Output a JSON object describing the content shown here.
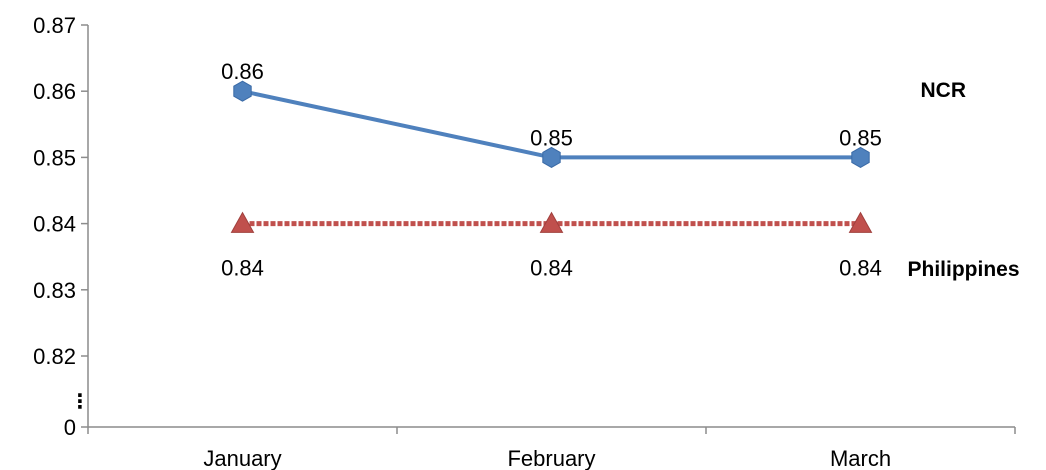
{
  "chart_data": {
    "type": "line",
    "categories": [
      "January",
      "February",
      "March"
    ],
    "y_ticks": [
      "0.87",
      "0.86",
      "0.85",
      "0.84",
      "0.83",
      "0.82",
      "0"
    ],
    "y_break": true,
    "ylim": [
      0.81,
      0.87
    ],
    "grid": false,
    "legend": "none (series names labeled at right end of lines)",
    "series": [
      {
        "name": "NCR",
        "values": [
          0.86,
          0.85,
          0.85
        ],
        "data_labels": [
          "0.86",
          "0.85",
          "0.85"
        ],
        "color": "#4f81bd",
        "marker": "hexagon",
        "line_style": "solid"
      },
      {
        "name": "Philippines",
        "values": [
          0.84,
          0.84,
          0.84
        ],
        "data_labels": [
          "0.84",
          "0.84",
          "0.84"
        ],
        "color": "#c0504d",
        "marker": "triangle",
        "line_style": "dotted"
      }
    ]
  }
}
